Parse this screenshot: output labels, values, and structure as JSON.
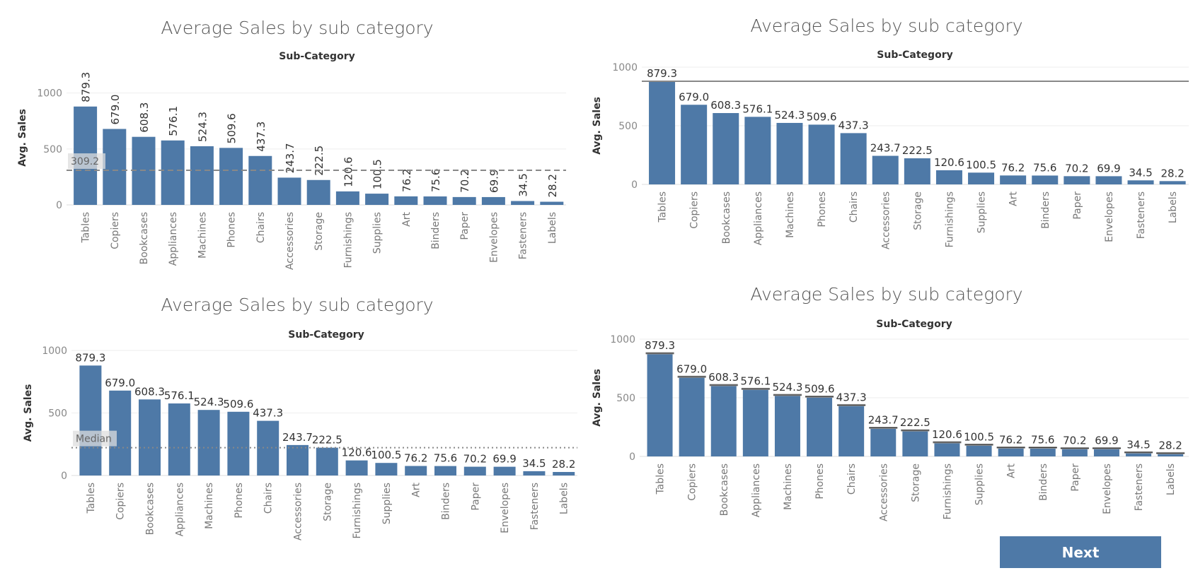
{
  "colors": {
    "bar": "#4e79a7",
    "grid": "#eeeeee",
    "axis": "#dddddd",
    "ref_line": "#888888"
  },
  "next_button": {
    "label": "Next"
  },
  "chart_data": [
    {
      "type": "bar",
      "title": "Average Sales by sub category",
      "subtitle": "Sub-Category",
      "ylabel": "Avg. Sales",
      "ylim": [
        0,
        1200
      ],
      "yticks": [
        0,
        500,
        1000
      ],
      "categories": [
        "Tables",
        "Copiers",
        "Bookcases",
        "Appliances",
        "Machines",
        "Phones",
        "Chairs",
        "Accessories",
        "Storage",
        "Furnishings",
        "Supplies",
        "Art",
        "Binders",
        "Paper",
        "Envelopes",
        "Fasteners",
        "Labels"
      ],
      "values": [
        879.3,
        679.0,
        608.3,
        576.1,
        524.3,
        509.6,
        437.3,
        243.7,
        222.5,
        120.6,
        100.5,
        76.2,
        75.6,
        70.2,
        69.9,
        34.5,
        28.2
      ],
      "value_labels": [
        "879.3",
        "679.0",
        "608.3",
        "576.1",
        "524.3",
        "509.6",
        "437.3",
        "243.7",
        "222.5",
        "120.6",
        "100.5",
        "76.2",
        "75.6",
        "70.2",
        "69.9",
        "34.5",
        "28.2"
      ],
      "data_label_orientation": "vertical",
      "reference_line": {
        "value": 309.2,
        "label": "309.2",
        "style": "dashed"
      }
    },
    {
      "type": "bar",
      "title": "Average Sales by sub category",
      "subtitle": "Sub-Category",
      "ylabel": "Avg. Sales",
      "ylim": [
        0,
        1000
      ],
      "yticks": [
        0,
        500,
        1000
      ],
      "categories": [
        "Tables",
        "Copiers",
        "Bookcases",
        "Appliances",
        "Machines",
        "Phones",
        "Chairs",
        "Accessories",
        "Storage",
        "Furnishings",
        "Supplies",
        "Art",
        "Binders",
        "Paper",
        "Envelopes",
        "Fasteners",
        "Labels"
      ],
      "values": [
        879.3,
        679.0,
        608.3,
        576.1,
        524.3,
        509.6,
        437.3,
        243.7,
        222.5,
        120.6,
        100.5,
        76.2,
        75.6,
        70.2,
        69.9,
        34.5,
        28.2
      ],
      "value_labels": [
        "879.3",
        "679.0",
        "608.3",
        "576.1",
        "524.3",
        "509.6",
        "437.3",
        "243.7",
        "222.5",
        "120.6",
        "100.5",
        "76.2",
        "75.6",
        "70.2",
        "69.9",
        "34.5",
        "28.2"
      ],
      "data_label_orientation": "horizontal",
      "reference_line": {
        "value": 879.3,
        "label": "",
        "style": "solid"
      }
    },
    {
      "type": "bar",
      "title": "Average Sales by sub category",
      "subtitle": "Sub-Category",
      "ylabel": "Avg. Sales",
      "ylim": [
        0,
        1000
      ],
      "yticks": [
        0,
        500,
        1000
      ],
      "categories": [
        "Tables",
        "Copiers",
        "Bookcases",
        "Appliances",
        "Machines",
        "Phones",
        "Chairs",
        "Accessories",
        "Storage",
        "Furnishings",
        "Supplies",
        "Art",
        "Binders",
        "Paper",
        "Envelopes",
        "Fasteners",
        "Labels"
      ],
      "values": [
        879.3,
        679.0,
        608.3,
        576.1,
        524.3,
        509.6,
        437.3,
        243.7,
        222.5,
        120.6,
        100.5,
        76.2,
        75.6,
        70.2,
        69.9,
        34.5,
        28.2
      ],
      "value_labels": [
        "879.3",
        "679.0",
        "608.3",
        "576.1",
        "524.3",
        "509.6",
        "437.3",
        "243.7",
        "222.5",
        "120.6",
        "100.5",
        "76.2",
        "75.6",
        "70.2",
        "69.9",
        "34.5",
        "28.2"
      ],
      "data_label_orientation": "horizontal",
      "reference_line": {
        "value": 222.5,
        "label": "Median",
        "style": "dotted"
      }
    },
    {
      "type": "bar",
      "title": "Average Sales by sub category",
      "subtitle": "Sub-Category",
      "ylabel": "Avg. Sales",
      "ylim": [
        0,
        1000
      ],
      "yticks": [
        0,
        500,
        1000
      ],
      "categories": [
        "Tables",
        "Copiers",
        "Bookcases",
        "Appliances",
        "Machines",
        "Phones",
        "Chairs",
        "Accessories",
        "Storage",
        "Furnishings",
        "Supplies",
        "Art",
        "Binders",
        "Paper",
        "Envelopes",
        "Fasteners",
        "Labels"
      ],
      "values": [
        879.3,
        679.0,
        608.3,
        576.1,
        524.3,
        509.6,
        437.3,
        243.7,
        222.5,
        120.6,
        100.5,
        76.2,
        75.6,
        70.2,
        69.9,
        34.5,
        28.2
      ],
      "value_labels": [
        "879.3",
        "679.0",
        "608.3",
        "576.1",
        "524.3",
        "509.6",
        "437.3",
        "243.7",
        "222.5",
        "120.6",
        "100.5",
        "76.2",
        "75.6",
        "70.2",
        "69.9",
        "34.5",
        "28.2"
      ],
      "data_label_orientation": "horizontal",
      "reference_line": null,
      "per_bar_reference_lines": true
    }
  ]
}
